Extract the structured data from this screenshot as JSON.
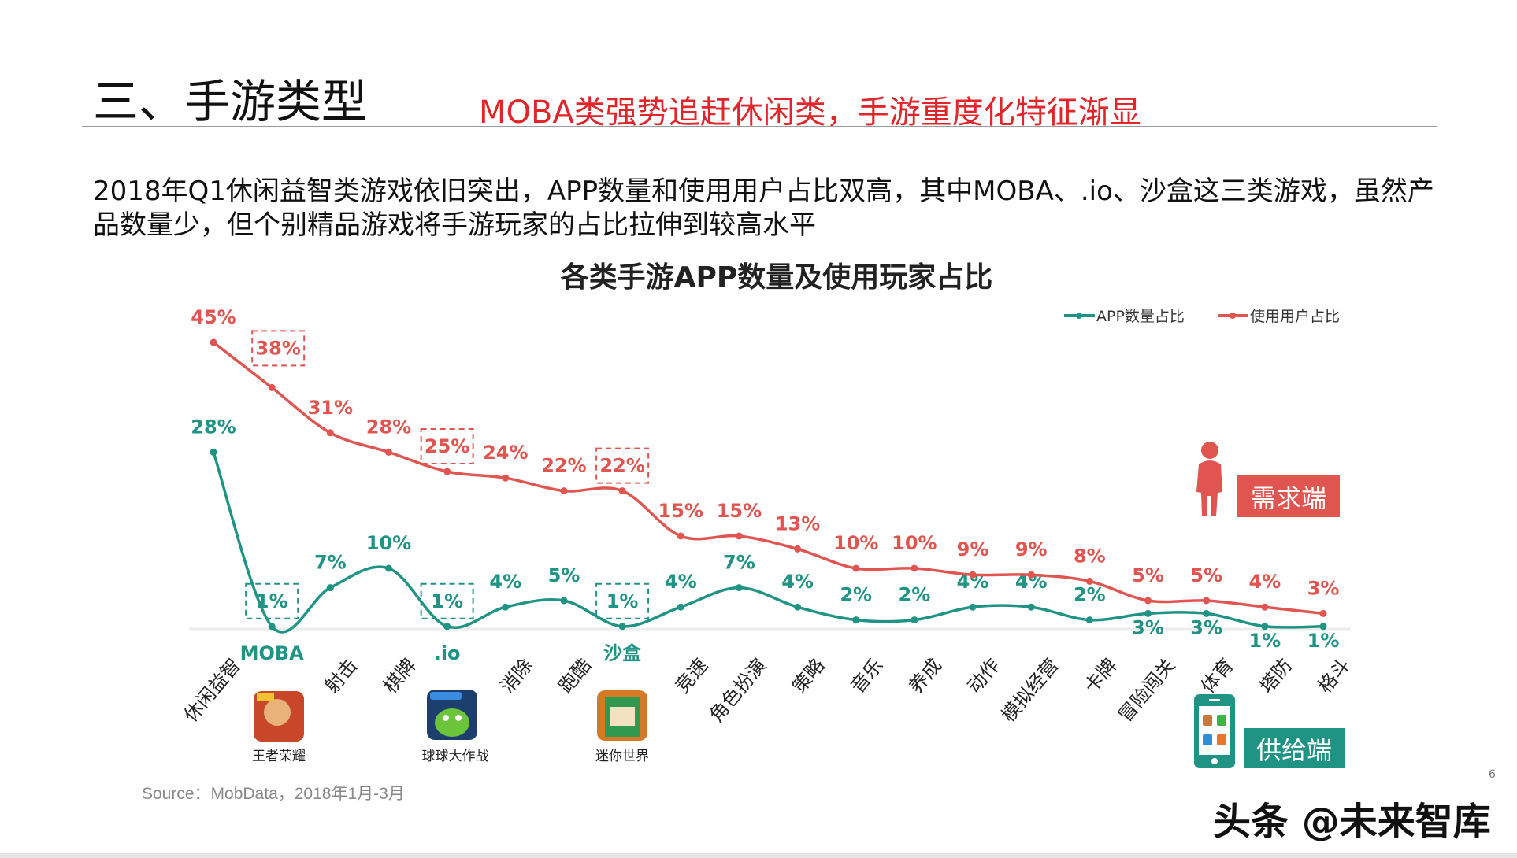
{
  "header": {
    "title": "三、手游类型",
    "subtitle": "MOBA类强势追赶休闲类，手游重度化特征渐显"
  },
  "intro": "2018年Q1休闲益智类游戏依旧突出，APP数量和使用用户占比双高，其中MOBA、.io、沙盒这三类游戏，虽然产品数量少，但个别精品游戏将手游玩家的占比拉伸到较高水平",
  "chart_data": {
    "type": "line",
    "title": "各类手游APP数量及使用玩家占比",
    "categories": [
      "休闲益智",
      "MOBA",
      "射击",
      "棋牌",
      ".io",
      "消除",
      "跑酷",
      "沙盒",
      "竞速",
      "角色扮演",
      "策略",
      "音乐",
      "养成",
      "动作",
      "模拟经营",
      "卡牌",
      "冒险闯关",
      "体育",
      "塔防",
      "格斗"
    ],
    "highlighted_categories": [
      "MOBA",
      ".io",
      "沙盒"
    ],
    "series": [
      {
        "name": "APP数量占比",
        "color": "#1f9384",
        "values": [
          28,
          1,
          7,
          10,
          1,
          4,
          5,
          1,
          4,
          7,
          4,
          2,
          2,
          4,
          4,
          2,
          3,
          3,
          1,
          1
        ]
      },
      {
        "name": "使用用户占比",
        "color": "#e05550",
        "values": [
          45,
          38,
          31,
          28,
          25,
          24,
          22,
          22,
          15,
          15,
          13,
          10,
          10,
          9,
          9,
          8,
          5,
          5,
          4,
          3
        ]
      }
    ],
    "value_format": "%",
    "legend": "top-right",
    "grid": false,
    "y_axis_visible": false
  },
  "featured_apps": [
    {
      "category": "MOBA",
      "name": "王者荣耀"
    },
    {
      "category": ".io",
      "name": "球球大作战"
    },
    {
      "category": "沙盒",
      "name": "迷你世界"
    }
  ],
  "annotations": {
    "demand": "需求端",
    "supply": "供给端"
  },
  "source": "Source：MobData，2018年1月-3月",
  "page_number": "6",
  "watermark": "头条 @未来智库"
}
